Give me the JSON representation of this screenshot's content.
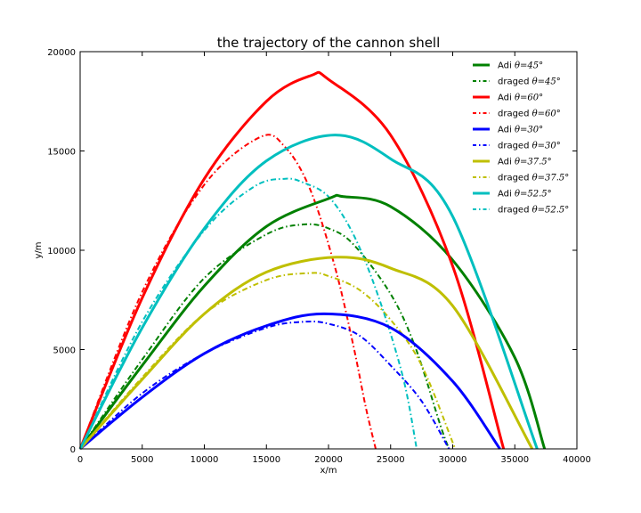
{
  "chart_data": {
    "type": "line",
    "title": "the trajectory of the cannon shell",
    "xlabel": "x/m",
    "ylabel": "y/m",
    "xlim": [
      0,
      40000
    ],
    "ylim": [
      0,
      20000
    ],
    "xticks": [
      0,
      5000,
      10000,
      15000,
      20000,
      25000,
      30000,
      35000,
      40000
    ],
    "yticks": [
      0,
      5000,
      10000,
      15000,
      20000
    ],
    "legend_position": "top-right",
    "series": [
      {
        "name": "Adi θ=45°",
        "legend_prefix": "Adi",
        "angle_label": "θ=45°",
        "color": "#008000",
        "style": "solid",
        "x": [
          0,
          5000,
          10000,
          15000,
          20000,
          21200,
          25000,
          30000,
          35000,
          37400
        ],
        "y": [
          0,
          4200,
          8200,
          11200,
          12600,
          12700,
          12200,
          9500,
          4600,
          0
        ]
      },
      {
        "name": "draged θ=45°",
        "legend_prefix": "draged",
        "angle_label": "θ=45°",
        "color": "#008000",
        "style": "dashdot",
        "x": [
          0,
          5000,
          10000,
          15000,
          18000,
          20000,
          22000,
          25000,
          27000,
          29000,
          29700
        ],
        "y": [
          0,
          4500,
          8600,
          10800,
          11300,
          11100,
          10300,
          7800,
          5100,
          1200,
          0
        ]
      },
      {
        "name": "Adi θ=60°",
        "legend_prefix": "Adi",
        "angle_label": "θ=60°",
        "color": "#ff0000",
        "style": "solid",
        "x": [
          0,
          5000,
          10000,
          15000,
          18600,
          20000,
          25000,
          30000,
          34100
        ],
        "y": [
          0,
          7600,
          13600,
          17500,
          18800,
          18600,
          15800,
          9200,
          0
        ]
      },
      {
        "name": "draged θ=60°",
        "legend_prefix": "draged",
        "angle_label": "θ=60°",
        "color": "#ff0000",
        "style": "dashdot",
        "x": [
          0,
          5000,
          10000,
          14500,
          16500,
          18500,
          20500,
          22000,
          23000,
          23800
        ],
        "y": [
          0,
          7900,
          13300,
          15700,
          15200,
          13100,
          9200,
          5200,
          2100,
          0
        ]
      },
      {
        "name": "Adi θ=30°",
        "legend_prefix": "Adi",
        "angle_label": "θ=30°",
        "color": "#0000ff",
        "style": "solid",
        "x": [
          0,
          5000,
          10000,
          15000,
          19700,
          25000,
          30000,
          33800
        ],
        "y": [
          0,
          2600,
          4800,
          6200,
          6800,
          6100,
          3400,
          0
        ]
      },
      {
        "name": "draged θ=30°",
        "legend_prefix": "draged",
        "angle_label": "θ=30°",
        "color": "#0000ff",
        "style": "dashdot",
        "x": [
          0,
          5000,
          10000,
          15000,
          18000,
          20000,
          22500,
          25000,
          27500,
          29700
        ],
        "y": [
          0,
          2800,
          4800,
          6100,
          6400,
          6300,
          5700,
          4200,
          2400,
          0
        ]
      },
      {
        "name": "Adi θ=37.5°",
        "legend_prefix": "Adi",
        "angle_label": "θ=37.5°",
        "color": "#bfbf00",
        "style": "solid",
        "x": [
          0,
          5000,
          10000,
          15000,
          20600,
          25000,
          30000,
          36400
        ],
        "y": [
          0,
          3500,
          6800,
          8900,
          9650,
          9100,
          7200,
          0
        ]
      },
      {
        "name": "draged θ=37.5°",
        "legend_prefix": "draged",
        "angle_label": "θ=37.5°",
        "color": "#bfbf00",
        "style": "dashdot",
        "x": [
          0,
          5000,
          10000,
          15000,
          18500,
          20000,
          22500,
          25000,
          27500,
          30200
        ],
        "y": [
          0,
          3600,
          6800,
          8500,
          8850,
          8700,
          8000,
          6500,
          4200,
          0
        ]
      },
      {
        "name": "Adi θ=52.5°",
        "legend_prefix": "Adi",
        "angle_label": "θ=52.5°",
        "color": "#00bfbf",
        "style": "solid",
        "x": [
          0,
          5000,
          10000,
          15000,
          20500,
          25000,
          30000,
          36800
        ],
        "y": [
          0,
          6100,
          11100,
          14500,
          15800,
          14600,
          11700,
          0
        ]
      },
      {
        "name": "draged θ=52.5°",
        "legend_prefix": "draged",
        "angle_label": "θ=52.5°",
        "color": "#00bfbf",
        "style": "dashdot",
        "x": [
          0,
          5000,
          10000,
          14000,
          16500,
          18000,
          20000,
          22000,
          24000,
          26000,
          27100
        ],
        "y": [
          0,
          6400,
          11000,
          13200,
          13600,
          13400,
          12700,
          10800,
          7700,
          3600,
          0
        ]
      }
    ]
  }
}
